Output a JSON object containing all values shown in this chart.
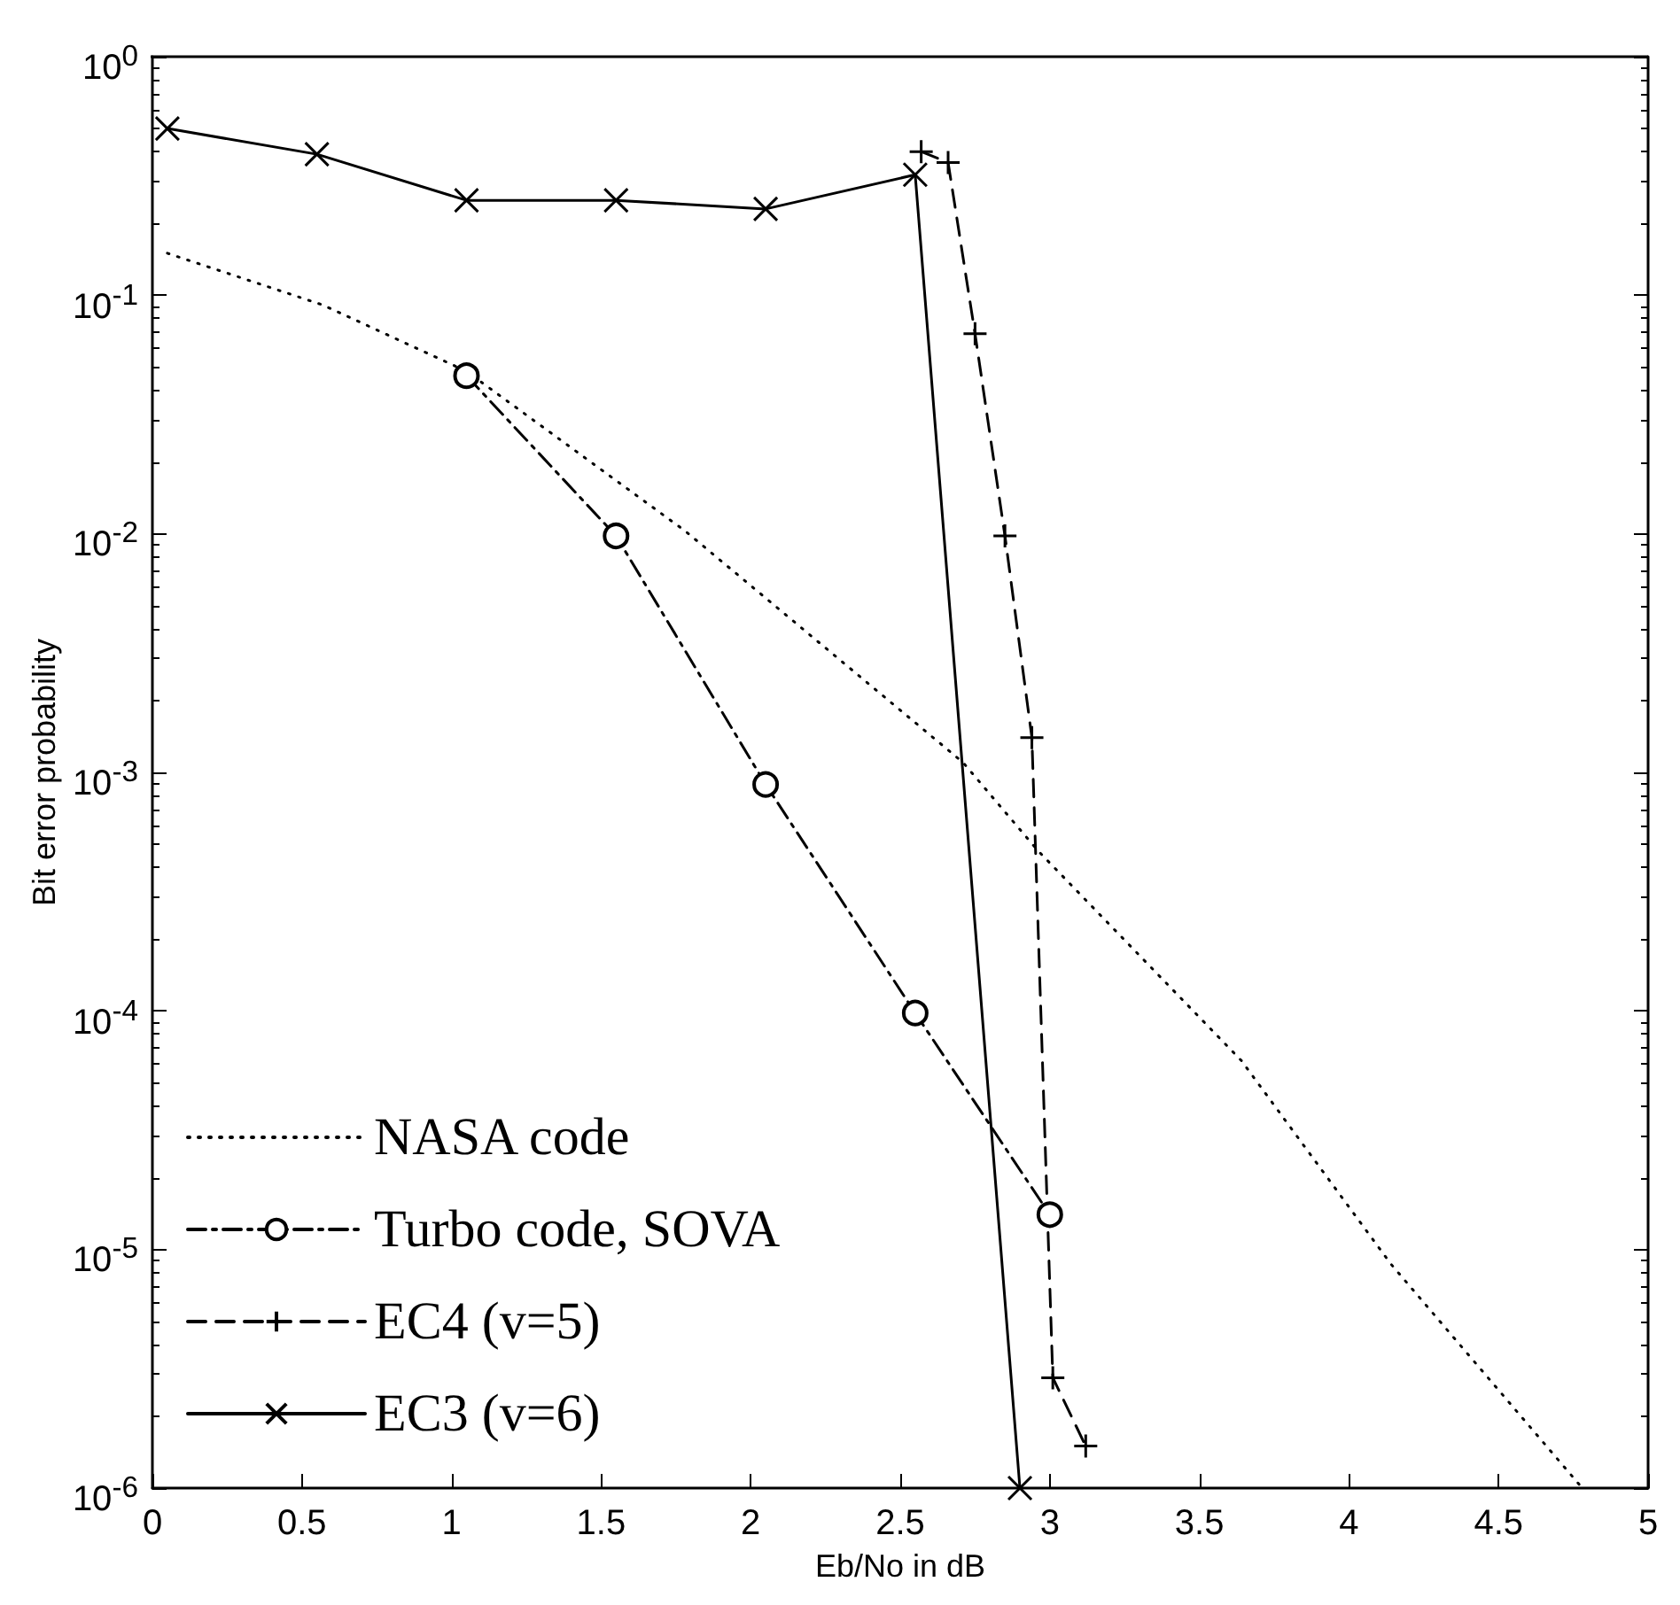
{
  "chart_data": {
    "type": "line",
    "xlabel": "Eb/No in dB",
    "ylabel": "Bit error probability",
    "xlim": [
      0,
      5
    ],
    "xticks": [
      0,
      0.5,
      1,
      1.5,
      2,
      2.5,
      3,
      3.5,
      4,
      4.5,
      5
    ],
    "ylim": [
      1e-06,
      1
    ],
    "log": "y",
    "yticks": [
      {
        "value": 1e-06,
        "label": "10$^{-6}$"
      },
      {
        "value": 1e-05,
        "label": "10$^{-5}$"
      },
      {
        "value": 0.0001,
        "label": "10$^{-4}$"
      },
      {
        "value": 0.001,
        "label": "10$^{-3}$"
      },
      {
        "value": 0.01,
        "label": "10$^{-2}$"
      },
      {
        "value": 0.1,
        "label": "10$^{-1}$"
      },
      {
        "value": 1,
        "label": "10$^{0}$"
      }
    ],
    "grid": false,
    "legend": "bottom left",
    "series": [
      {
        "name": "NASA code",
        "color": "#000000",
        "line_style": "dotted",
        "marker": "none",
        "x": [
          0.05,
          0.57,
          1.05,
          1.78,
          2.71,
          2.96,
          3.64,
          4.14,
          4.78
        ],
        "values": [
          0.15,
          0.091,
          0.048,
          0.0103,
          0.0011,
          0.00047,
          6.2e-05,
          8.7e-06,
          1e-06
        ]
      },
      {
        "name": "Turbo code, SOVA",
        "color": "#000000",
        "line_style": "dashdot",
        "marker": "circle",
        "x": [
          1.05,
          1.55,
          2.05,
          2.55,
          3.0
        ],
        "values": [
          0.046,
          0.0098,
          0.00089,
          9.8e-05,
          1.4e-05
        ]
      },
      {
        "name": "EC4 (v=5)",
        "color": "#000000",
        "line_style": "dashed",
        "marker": "cross",
        "x": [
          2.57,
          2.66,
          2.75,
          2.85,
          2.94,
          3.01,
          3.12
        ],
        "values": [
          0.4,
          0.36,
          0.069,
          0.0098,
          0.0014,
          2.9e-06,
          1.5e-06
        ]
      },
      {
        "name": "EC3 (v=6)",
        "color": "#000000",
        "line_style": "solid",
        "marker": "x",
        "x": [
          0.05,
          0.55,
          1.05,
          1.55,
          2.05,
          2.55,
          2.9
        ],
        "values": [
          0.5,
          0.39,
          0.25,
          0.25,
          0.23,
          0.32,
          1e-06
        ]
      }
    ]
  }
}
